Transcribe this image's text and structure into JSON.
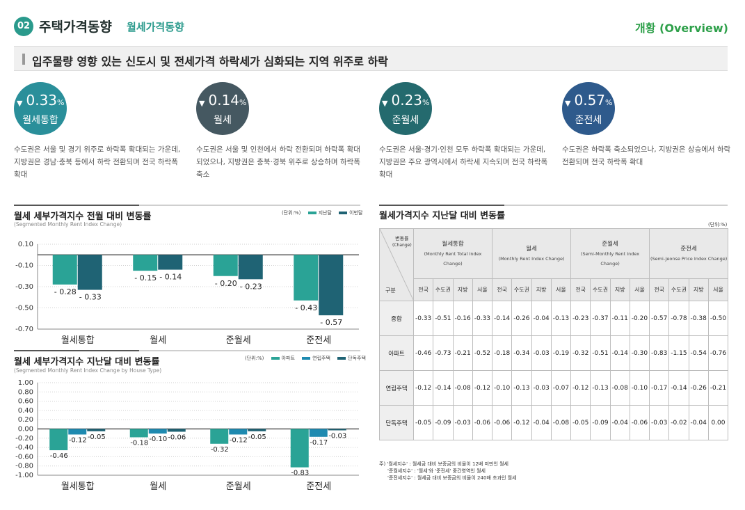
{
  "header": {
    "num": "02",
    "title": "주택가격동향",
    "subtitle": "월세가격동향",
    "right": "개황 (Overview)"
  },
  "banner": "입주물량 영향 있는 신도시 및 전세가격 하락세가 심화되는 지역 위주로 하락",
  "kpis": [
    {
      "arrow": "▼",
      "value": "0.33",
      "unit": "%",
      "label": "월세통합",
      "color": "#2a8f9a",
      "desc": "수도권은 서울 및 경기 위주로 하락폭 확대되는 가운데, 지방권은 경남·충북 등에서 하락 전환되며 전국 하락폭 확대"
    },
    {
      "arrow": "▼",
      "value": "0.14",
      "unit": "%",
      "label": "월세",
      "color": "#455861",
      "desc": "수도권은 서울 및 인천에서 하락 전환되며 하락폭 확대 되었으나, 지방권은 충북·경북 위주로 상승하며 하락폭 축소"
    },
    {
      "arrow": "▼",
      "value": "0.23",
      "unit": "%",
      "label": "준월세",
      "color": "#246a6e",
      "desc": "수도권은 서울·경기·인천 모두 하락폭 확대되는 가운데, 지방권은 주요 광역시에서 하락세 지속되며 전국 하락폭 확대"
    },
    {
      "arrow": "▼",
      "value": "0.57",
      "unit": "%",
      "label": "준전세",
      "color": "#2e5a8c",
      "desc": "수도권은 하락폭 축소되었으나, 지방권은 상승에서 하락 전환되며 전국 하락폭 확대"
    }
  ],
  "chart1": {
    "title": "월세 세부가격지수 전월 대비 변동률",
    "subtitle": "(Segmented Monthly Rent Index Change)",
    "unit": "(단위:%)",
    "colors": [
      "#2aa396",
      "#1f6374"
    ],
    "chart_data": {
      "type": "bar",
      "categories": [
        "월세통합",
        "월세",
        "준월세",
        "준전세"
      ],
      "series": [
        {
          "name": "지난달",
          "values": [
            -0.28,
            -0.15,
            -0.2,
            -0.43
          ]
        },
        {
          "name": "이번달",
          "values": [
            -0.33,
            -0.14,
            -0.23,
            -0.57
          ]
        }
      ],
      "yticks": [
        "0.10",
        "-0.10",
        "-0.30",
        "-0.50",
        "-0.70"
      ],
      "ylim": [
        -0.7,
        0.1
      ]
    }
  },
  "chart2": {
    "title": "월세 세부가격지수 지난달 대비 변동률",
    "subtitle": "(Segmented Monthly Rent Index Change by House Type)",
    "unit": "(단위:%)",
    "colors": [
      "#2aa396",
      "#1e8ab0",
      "#1f6374"
    ],
    "chart_data": {
      "type": "bar",
      "categories": [
        "월세통합",
        "월세",
        "준월세",
        "준전세"
      ],
      "series": [
        {
          "name": "아파트",
          "values": [
            -0.46,
            -0.18,
            -0.32,
            -0.83
          ]
        },
        {
          "name": "연립주택",
          "values": [
            -0.12,
            -0.1,
            -0.12,
            -0.17
          ]
        },
        {
          "name": "단독주택",
          "values": [
            -0.05,
            -0.06,
            -0.05,
            -0.03
          ]
        }
      ],
      "yticks": [
        "1.00",
        "0.80",
        "0.60",
        "0.40",
        "0.20",
        "0.00",
        "-0.20",
        "-0.40",
        "-0.60",
        "-0.80",
        "-1.00"
      ],
      "ylim": [
        -1.0,
        1.0
      ]
    }
  },
  "table": {
    "title": "월세가격지수 지난달 대비 변동률",
    "unit": "(단위:%)",
    "corner_top": "변동률",
    "corner_top_en": "(Change)",
    "corner_bottom": "구분",
    "groups": [
      {
        "name": "월세통합",
        "en": "(Monthly Rent Total Index Change)"
      },
      {
        "name": "월세",
        "en": "(Monthly Rent Index Change)"
      },
      {
        "name": "준월세",
        "en": "(Semi-Monthly Rent Index Change)"
      },
      {
        "name": "준전세",
        "en": "(Semi-Jeonse Price Index Change)"
      }
    ],
    "subcols": [
      "전국",
      "수도권",
      "지방",
      "서울"
    ],
    "rows": [
      {
        "label": "종합",
        "values": [
          "-0.33",
          "-0.51",
          "-0.16",
          "-0.33",
          "-0.14",
          "-0.26",
          "-0.04",
          "-0.13",
          "-0.23",
          "-0.37",
          "-0.11",
          "-0.20",
          "-0.57",
          "-0.78",
          "-0.38",
          "-0.50"
        ]
      },
      {
        "label": "아파트",
        "values": [
          "-0.46",
          "-0.73",
          "-0.21",
          "-0.52",
          "-0.18",
          "-0.34",
          "-0.03",
          "-0.19",
          "-0.32",
          "-0.51",
          "-0.14",
          "-0.30",
          "-0.83",
          "-1.15",
          "-0.54",
          "-0.76"
        ]
      },
      {
        "label": "연립주택",
        "values": [
          "-0.12",
          "-0.14",
          "-0.08",
          "-0.12",
          "-0.10",
          "-0.13",
          "-0.03",
          "-0.07",
          "-0.12",
          "-0.13",
          "-0.08",
          "-0.10",
          "-0.17",
          "-0.14",
          "-0.26",
          "-0.21"
        ]
      },
      {
        "label": "단독주택",
        "values": [
          "-0.05",
          "-0.09",
          "-0.03",
          "-0.06",
          "-0.06",
          "-0.12",
          "-0.04",
          "-0.08",
          "-0.05",
          "-0.09",
          "-0.04",
          "-0.06",
          "-0.03",
          "-0.02",
          "-0.04",
          "0.00"
        ]
      }
    ]
  },
  "notes": [
    "주) '월세지수' : 월세금 대비 보증금의 비율이 12배 미만인 월세",
    "'준월세지수' : '월세'와 '준전세' 중간영역인 월세",
    "'준전세지수' : 월세금 대비 보증금의 비율이 240배 초과인 월세"
  ]
}
